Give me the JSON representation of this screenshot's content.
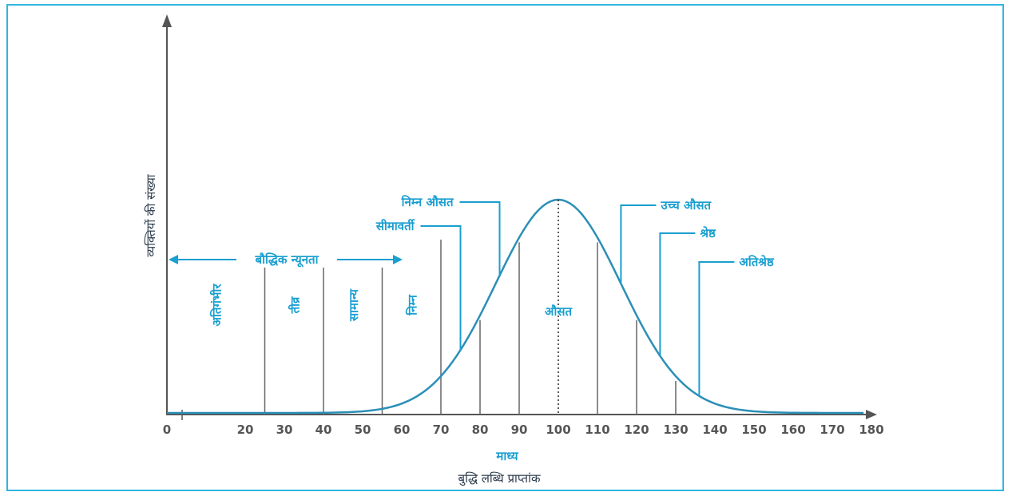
{
  "colors": {
    "frame": "#31b6e0",
    "curve": "#2b8fb6",
    "accent": "#1a9fd0",
    "axis": "#555555",
    "divider": "#666666"
  },
  "chart_data": {
    "type": "line",
    "title": "",
    "xlabel": "बुद्धि लब्धि प्राप्तांक",
    "ylabel": "व्यक्तियों की संख्या",
    "xlim": [
      0,
      190
    ],
    "x_ticks": [
      0,
      20,
      30,
      40,
      50,
      60,
      70,
      80,
      90,
      100,
      110,
      120,
      130,
      140,
      150,
      160,
      170,
      180
    ],
    "mean_label": "माध्य",
    "mean": 100,
    "sd": 16,
    "grid": false,
    "legend": "none",
    "dividers": [
      25,
      40,
      55,
      70,
      80,
      90,
      110,
      120,
      130
    ],
    "region_labels": [
      {
        "text": "अतिगंभीर",
        "x": 12.5,
        "orientation": "vertical"
      },
      {
        "text": "तीव्र",
        "x": 32.5,
        "orientation": "vertical"
      },
      {
        "text": "सामान्य",
        "x": 47.5,
        "orientation": "vertical"
      },
      {
        "text": "निम्न",
        "x": 62.5,
        "orientation": "vertical"
      },
      {
        "text": "औसत",
        "x": 100,
        "orientation": "horizontal"
      }
    ],
    "deficiency_label": "बौद्धिक न्यूनता",
    "deficiency_range": [
      0,
      70
    ],
    "callouts": [
      {
        "text": "निम्न औसत",
        "x": 85,
        "side": "left"
      },
      {
        "text": "सीमावर्ती",
        "x": 75,
        "side": "left"
      },
      {
        "text": "उच्च औसत",
        "x": 116,
        "side": "right"
      },
      {
        "text": "श्रेष्ठ",
        "x": 126,
        "side": "right"
      },
      {
        "text": "अतिश्रेष्ठ",
        "x": 136,
        "side": "right"
      }
    ]
  }
}
